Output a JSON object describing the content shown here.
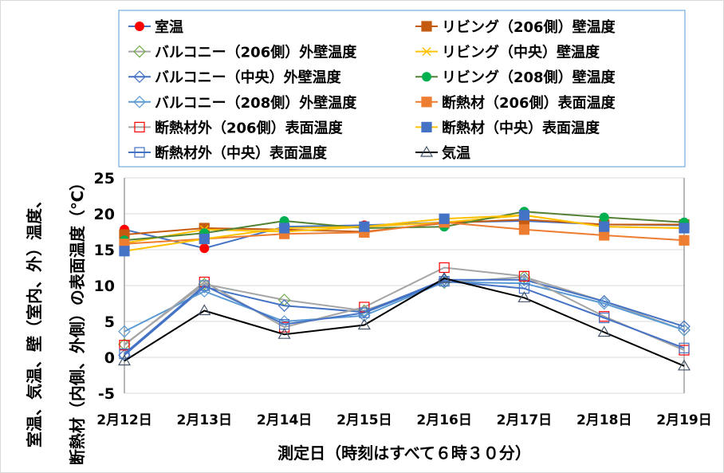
{
  "chart_data": {
    "type": "line",
    "title": "",
    "xlabel": "測定日（時刻はすべて６時３０分）",
    "ylabel_line1": "室温、気温、壁（室内、外）温度、",
    "ylabel_line2": "断熱材（内側、外側）の表面温度（℃）",
    "ylim": [
      -5,
      25
    ],
    "yticks": [
      -5,
      0,
      5,
      10,
      15,
      20,
      25
    ],
    "grid": true,
    "legend_placement": "top",
    "categories": [
      "2月12日",
      "2月13日",
      "2月14日",
      "2月15日",
      "2月16日",
      "2月17日",
      "2月18日",
      "2月19日"
    ],
    "series": [
      {
        "name": "室温",
        "line": "#4472c4",
        "marker": "circle",
        "mcolor": "#ff0000",
        "fill": true,
        "values": [
          17.8,
          15.2,
          18.2,
          18.4,
          18.8,
          19.0,
          18.5,
          18.4
        ]
      },
      {
        "name": "リビング（206側）壁温度",
        "line": "#c55a11",
        "marker": "square",
        "mcolor": "#c55a11",
        "fill": true,
        "values": [
          17.1,
          18.0,
          17.8,
          17.5,
          18.7,
          19.2,
          18.5,
          18.5
        ]
      },
      {
        "name": "バルコニー（206側）外壁温度",
        "line": "#a5a5a5",
        "marker": "diamond",
        "mcolor": "#70ad47",
        "fill": false,
        "values": [
          1.8,
          10.2,
          8.0,
          6.5,
          10.4,
          11.2,
          7.8,
          3.8
        ]
      },
      {
        "name": "リビング（中央）壁温度",
        "line": "#ffc000",
        "marker": "x",
        "mcolor": "#ffc000",
        "fill": false,
        "values": [
          15.9,
          17.8,
          17.5,
          18.2,
          18.8,
          19.8,
          18.2,
          18.0
        ]
      },
      {
        "name": "バルコニー（中央）外壁温度",
        "line": "#4472c4",
        "marker": "diamond",
        "mcolor": "#4472c4",
        "fill": false,
        "values": [
          0.3,
          9.8,
          7.2,
          6.3,
          10.8,
          10.8,
          7.8,
          4.3
        ]
      },
      {
        "name": "リビング（208側）壁温度",
        "line": "#548235",
        "marker": "circle",
        "mcolor": "#00b050",
        "fill": true,
        "values": [
          16.3,
          17.3,
          19.0,
          18.0,
          18.2,
          20.3,
          19.5,
          18.8
        ]
      },
      {
        "name": "バルコニー（208側）外壁温度",
        "line": "#5b9bd5",
        "marker": "diamond",
        "mcolor": "#5b9bd5",
        "fill": false,
        "values": [
          3.6,
          9.2,
          5.0,
          5.8,
          10.5,
          10.3,
          7.5,
          3.8
        ]
      },
      {
        "name": "断熱材（206側）表面温度",
        "line": "#ed7d31",
        "marker": "square",
        "mcolor": "#ed7d31",
        "fill": true,
        "values": [
          15.8,
          16.5,
          17.2,
          17.4,
          18.8,
          17.8,
          17.0,
          16.3
        ]
      },
      {
        "name": "断熱材外（206側）表面温度",
        "line": "#a5a5a5",
        "marker": "square",
        "mcolor": "#ff0000",
        "fill": false,
        "values": [
          1.7,
          10.5,
          4.2,
          7.0,
          12.5,
          11.3,
          5.7,
          1.0
        ]
      },
      {
        "name": "断熱材（中央）表面温度",
        "line": "#ffc000",
        "marker": "square",
        "mcolor": "#4472c4",
        "fill": true,
        "values": [
          14.8,
          16.5,
          18.0,
          18.2,
          19.3,
          19.8,
          18.2,
          18.0
        ]
      },
      {
        "name": "断熱材外（中央）表面温度",
        "line": "#4472c4",
        "marker": "square",
        "mcolor": "#4472c4",
        "fill": false,
        "values": [
          0.5,
          10.0,
          4.6,
          6.2,
          10.6,
          9.6,
          5.5,
          1.3
        ]
      },
      {
        "name": "気温",
        "line": "#000000",
        "marker": "triangle",
        "mcolor": "#44546a",
        "fill": false,
        "values": [
          -0.5,
          6.5,
          3.2,
          4.5,
          11.0,
          8.3,
          3.5,
          -1.2
        ]
      }
    ]
  }
}
